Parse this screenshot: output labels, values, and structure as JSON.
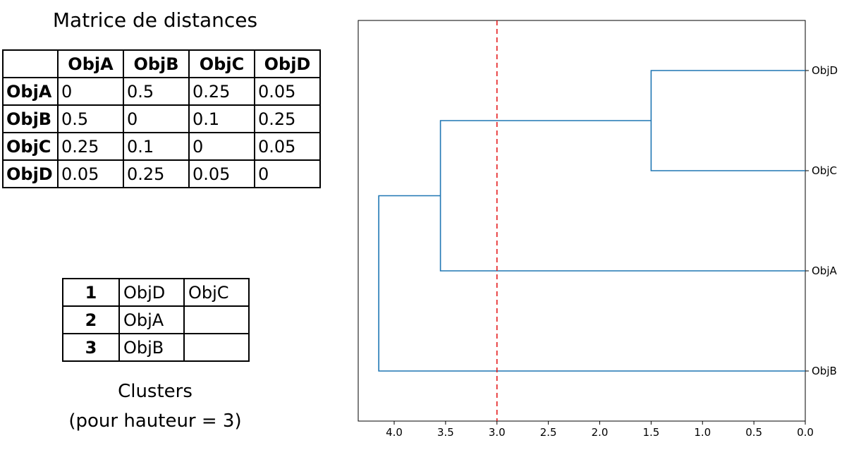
{
  "matrix": {
    "title": "Matrice de distances",
    "headers": [
      "ObjA",
      "ObjB",
      "ObjC",
      "ObjD"
    ],
    "rows": [
      {
        "label": "ObjA",
        "values": [
          "0",
          "0.5",
          "0.25",
          "0.05"
        ]
      },
      {
        "label": "ObjB",
        "values": [
          "0.5",
          "0",
          "0.1",
          "0.25"
        ]
      },
      {
        "label": "ObjC",
        "values": [
          "0.25",
          "0.1",
          "0",
          "0.05"
        ]
      },
      {
        "label": "ObjD",
        "values": [
          "0.05",
          "0.25",
          "0.05",
          "0"
        ]
      }
    ]
  },
  "clusters": {
    "rows": [
      {
        "id": "1",
        "members": [
          "ObjD",
          "ObjC"
        ]
      },
      {
        "id": "2",
        "members": [
          "ObjA",
          ""
        ]
      },
      {
        "id": "3",
        "members": [
          "ObjB",
          ""
        ]
      }
    ],
    "caption_line1": "Clusters",
    "caption_line2": "(pour hauteur = 3)"
  },
  "chart_data": {
    "type": "dendrogram",
    "orientation": "right",
    "leaves": [
      "ObjD",
      "ObjC",
      "ObjA",
      "ObjB"
    ],
    "merges": [
      {
        "left": "ObjD",
        "right": "ObjC",
        "height": 1.5
      },
      {
        "left": "ObjD+ObjC",
        "right": "ObjA",
        "height": 3.55
      },
      {
        "left": "ObjD+ObjC+ObjA",
        "right": "ObjB",
        "height": 4.15
      }
    ],
    "xlim": [
      4.35,
      0.0
    ],
    "xticks": [
      "4.0",
      "3.5",
      "3.0",
      "2.5",
      "2.0",
      "1.5",
      "1.0",
      "0.5",
      "0.0"
    ],
    "xtick_values": [
      4.0,
      3.5,
      3.0,
      2.5,
      2.0,
      1.5,
      1.0,
      0.5,
      0.0
    ],
    "cut_height": 3.0,
    "colors": {
      "link": "#1f77b4",
      "cut": "#e41a1c",
      "axis": "#000000"
    }
  }
}
